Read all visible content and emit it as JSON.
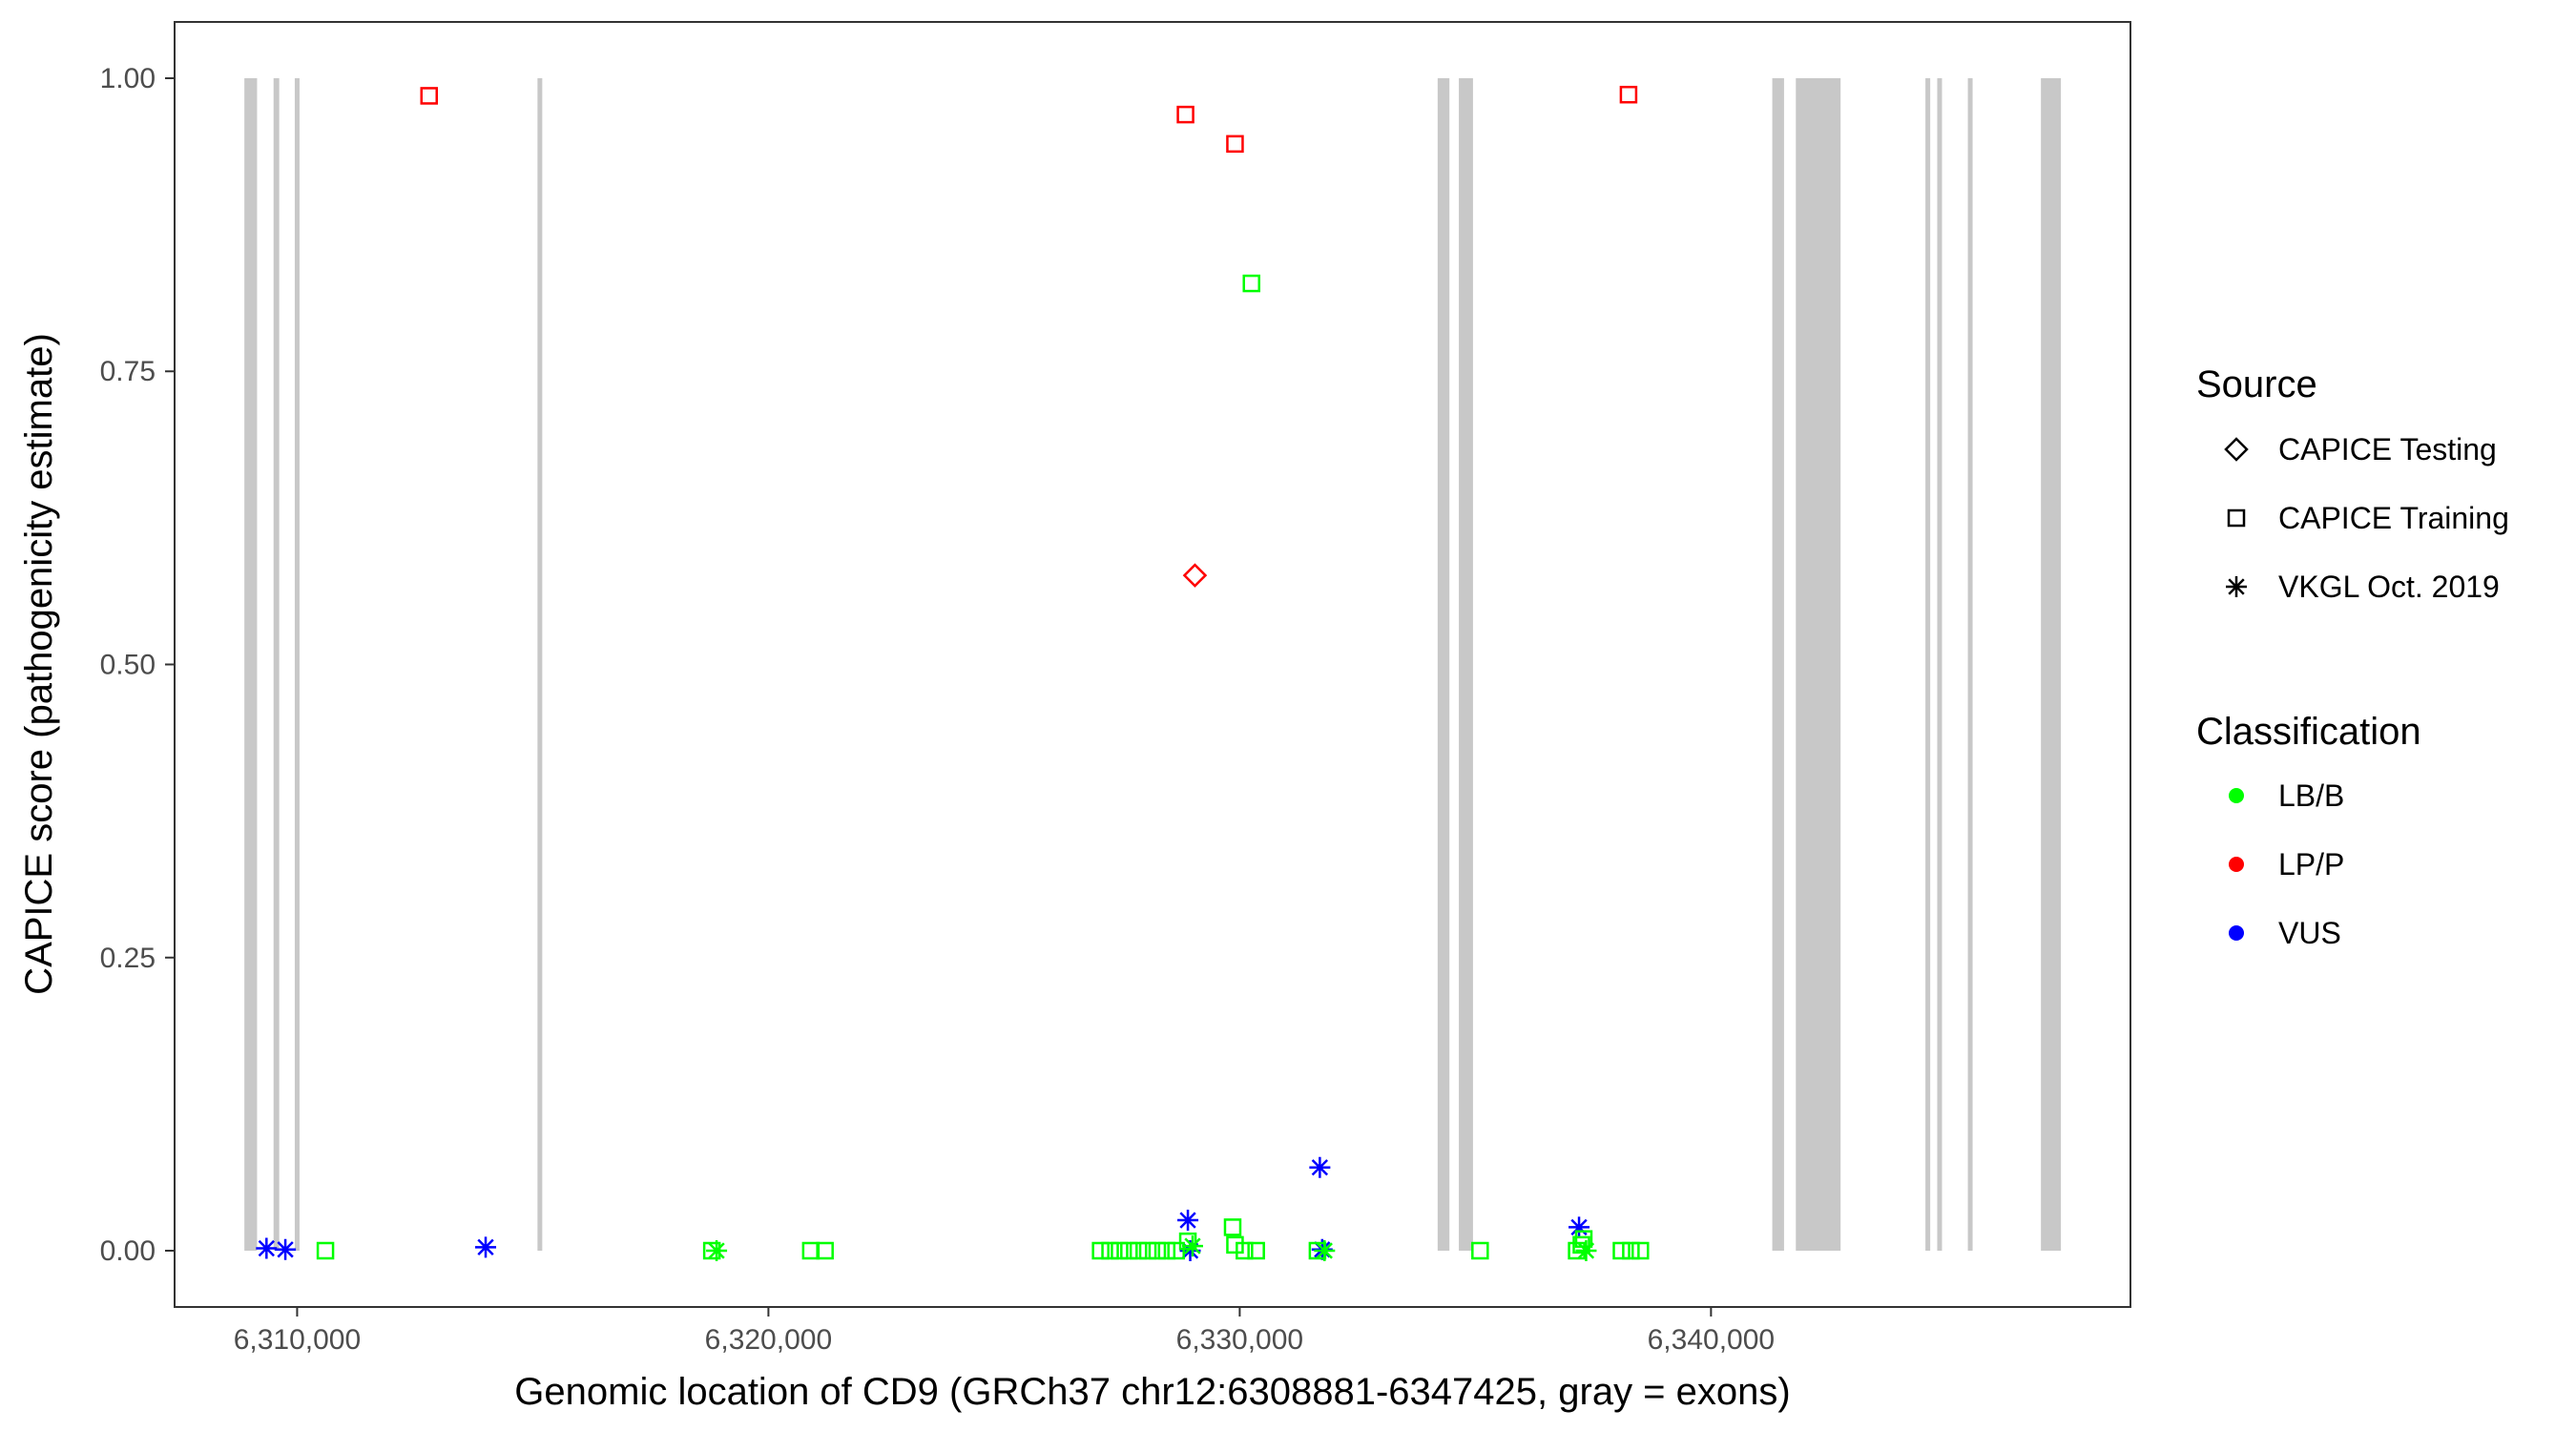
{
  "chart_data": {
    "type": "scatter",
    "xlabel": "Genomic location of CD9 (GRCh37 chr12:6308881-6347425, gray = exons)",
    "ylabel": "CAPICE score (pathogenicity estimate)",
    "xlim": [
      6307400,
      6348900
    ],
    "ylim": [
      -0.048,
      1.048
    ],
    "x_ticks": [
      6310000,
      6320000,
      6330000,
      6340000
    ],
    "x_tick_labels": [
      "6,310,000",
      "6,320,000",
      "6,330,000",
      "6,340,000"
    ],
    "y_ticks": [
      0,
      0.25,
      0.5,
      0.75,
      1.0
    ],
    "y_tick_labels": [
      "0.00",
      "0.25",
      "0.50",
      "0.75",
      "1.00"
    ],
    "grid": false,
    "exon_color": "#c8c8c8",
    "exons": [
      [
        6308881,
        6309150
      ],
      [
        6309500,
        6309620
      ],
      [
        6309950,
        6310050
      ],
      [
        6315100,
        6315180
      ],
      [
        6334200,
        6334450
      ],
      [
        6334650,
        6334950
      ],
      [
        6341300,
        6341550
      ],
      [
        6341800,
        6342750
      ],
      [
        6344550,
        6344620
      ],
      [
        6344800,
        6344870
      ],
      [
        6345450,
        6345520
      ],
      [
        6347000,
        6347425
      ]
    ],
    "legend": {
      "position": "right",
      "source_title": "Source",
      "source_items": [
        {
          "label": "CAPICE Testing",
          "shape": "diamond"
        },
        {
          "label": "CAPICE Training",
          "shape": "square"
        },
        {
          "label": "VKGL Oct. 2019",
          "shape": "asterisk"
        }
      ],
      "class_title": "Classification",
      "class_items": [
        {
          "label": "LB/B",
          "color": "#00ff00"
        },
        {
          "label": "LP/P",
          "color": "#ff0000"
        },
        {
          "label": "VUS",
          "color": "#0000ff"
        }
      ]
    },
    "points": [
      {
        "x": 6312800,
        "y": 0.985,
        "source": "CAPICE Training",
        "class": "LP/P"
      },
      {
        "x": 6328850,
        "y": 0.969,
        "source": "CAPICE Training",
        "class": "LP/P"
      },
      {
        "x": 6329900,
        "y": 0.944,
        "source": "CAPICE Training",
        "class": "LP/P"
      },
      {
        "x": 6338250,
        "y": 0.986,
        "source": "CAPICE Training",
        "class": "LP/P"
      },
      {
        "x": 6329050,
        "y": 0.576,
        "source": "CAPICE Testing",
        "class": "LP/P"
      },
      {
        "x": 6330250,
        "y": 0.825,
        "source": "CAPICE Training",
        "class": "LB/B"
      },
      {
        "x": 6309350,
        "y": 0.002,
        "source": "VKGL Oct. 2019",
        "class": "VUS"
      },
      {
        "x": 6309750,
        "y": 0.001,
        "source": "VKGL Oct. 2019",
        "class": "VUS"
      },
      {
        "x": 6314000,
        "y": 0.003,
        "source": "VKGL Oct. 2019",
        "class": "VUS"
      },
      {
        "x": 6328900,
        "y": 0.026,
        "source": "VKGL Oct. 2019",
        "class": "VUS"
      },
      {
        "x": 6328950,
        "y": 0.0,
        "source": "VKGL Oct. 2019",
        "class": "VUS"
      },
      {
        "x": 6331700,
        "y": 0.071,
        "source": "VKGL Oct. 2019",
        "class": "VUS"
      },
      {
        "x": 6331750,
        "y": 0.001,
        "source": "VKGL Oct. 2019",
        "class": "VUS"
      },
      {
        "x": 6337200,
        "y": 0.02,
        "source": "VKGL Oct. 2019",
        "class": "VUS"
      },
      {
        "x": 6310600,
        "y": 0.0,
        "source": "CAPICE Training",
        "class": "LB/B"
      },
      {
        "x": 6318800,
        "y": 0.0,
        "source": "CAPICE Training",
        "class": "LB/B"
      },
      {
        "x": 6318900,
        "y": 0.0,
        "source": "VKGL Oct. 2019",
        "class": "LB/B"
      },
      {
        "x": 6320900,
        "y": 0.0,
        "source": "CAPICE Training",
        "class": "LB/B"
      },
      {
        "x": 6321200,
        "y": 0.0,
        "source": "CAPICE Training",
        "class": "LB/B"
      },
      {
        "x": 6327050,
        "y": 0.0,
        "source": "CAPICE Training",
        "class": "LB/B"
      },
      {
        "x": 6327250,
        "y": 0.0,
        "source": "CAPICE Training",
        "class": "LB/B"
      },
      {
        "x": 6327450,
        "y": 0.0,
        "source": "CAPICE Training",
        "class": "LB/B"
      },
      {
        "x": 6327650,
        "y": 0.0,
        "source": "CAPICE Training",
        "class": "LB/B"
      },
      {
        "x": 6327850,
        "y": 0.0,
        "source": "CAPICE Training",
        "class": "LB/B"
      },
      {
        "x": 6328050,
        "y": 0.0,
        "source": "CAPICE Training",
        "class": "LB/B"
      },
      {
        "x": 6328250,
        "y": 0.0,
        "source": "CAPICE Training",
        "class": "LB/B"
      },
      {
        "x": 6328450,
        "y": 0.0,
        "source": "CAPICE Training",
        "class": "LB/B"
      },
      {
        "x": 6328650,
        "y": 0.0,
        "source": "CAPICE Training",
        "class": "LB/B"
      },
      {
        "x": 6328900,
        "y": 0.008,
        "source": "CAPICE Training",
        "class": "LB/B"
      },
      {
        "x": 6329000,
        "y": 0.004,
        "source": "VKGL Oct. 2019",
        "class": "LB/B"
      },
      {
        "x": 6329850,
        "y": 0.02,
        "source": "CAPICE Training",
        "class": "LB/B"
      },
      {
        "x": 6329900,
        "y": 0.005,
        "source": "CAPICE Training",
        "class": "LB/B"
      },
      {
        "x": 6330100,
        "y": 0.0,
        "source": "CAPICE Training",
        "class": "LB/B"
      },
      {
        "x": 6330350,
        "y": 0.0,
        "source": "CAPICE Training",
        "class": "LB/B"
      },
      {
        "x": 6331650,
        "y": 0.0,
        "source": "CAPICE Training",
        "class": "LB/B"
      },
      {
        "x": 6331800,
        "y": 0.0,
        "source": "VKGL Oct. 2019",
        "class": "LB/B"
      },
      {
        "x": 6335100,
        "y": 0.0,
        "source": "CAPICE Training",
        "class": "LB/B"
      },
      {
        "x": 6337150,
        "y": 0.0,
        "source": "CAPICE Training",
        "class": "LB/B"
      },
      {
        "x": 6337250,
        "y": 0.005,
        "source": "CAPICE Training",
        "class": "LB/B"
      },
      {
        "x": 6337300,
        "y": 0.01,
        "source": "CAPICE Training",
        "class": "LB/B"
      },
      {
        "x": 6337350,
        "y": 0.0,
        "source": "VKGL Oct. 2019",
        "class": "LB/B"
      },
      {
        "x": 6338100,
        "y": 0.0,
        "source": "CAPICE Training",
        "class": "LB/B"
      },
      {
        "x": 6338300,
        "y": 0.0,
        "source": "CAPICE Training",
        "class": "LB/B"
      },
      {
        "x": 6338500,
        "y": 0.0,
        "source": "CAPICE Training",
        "class": "LB/B"
      }
    ]
  }
}
